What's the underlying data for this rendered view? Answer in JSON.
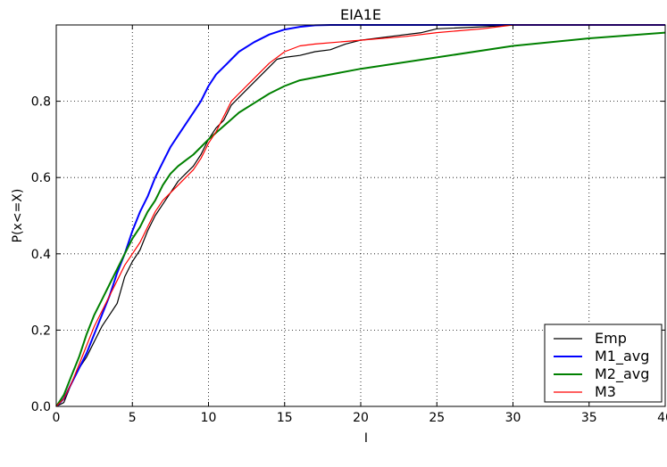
{
  "chart_data": {
    "type": "line",
    "title": "EIA1E",
    "xlabel": "I",
    "ylabel": "P(x<=X)",
    "xlim": [
      0,
      40
    ],
    "ylim": [
      0,
      1.0
    ],
    "x_ticks": [
      "0",
      "5",
      "10",
      "15",
      "20",
      "25",
      "30",
      "35",
      "40"
    ],
    "y_ticks": [
      "0.0",
      "0.2",
      "0.4",
      "0.6",
      "0.8"
    ],
    "grid": true,
    "legend_position": "bottom-right",
    "series": [
      {
        "name": "Emp",
        "color": "#000000",
        "points": [
          [
            0,
            0
          ],
          [
            0.5,
            0.01
          ],
          [
            1,
            0.06
          ],
          [
            1.5,
            0.1
          ],
          [
            2,
            0.13
          ],
          [
            2.5,
            0.17
          ],
          [
            3,
            0.21
          ],
          [
            3.5,
            0.24
          ],
          [
            4,
            0.27
          ],
          [
            4.5,
            0.34
          ],
          [
            5,
            0.38
          ],
          [
            5.5,
            0.41
          ],
          [
            6,
            0.46
          ],
          [
            6.5,
            0.5
          ],
          [
            7,
            0.53
          ],
          [
            7.5,
            0.56
          ],
          [
            8,
            0.59
          ],
          [
            8.5,
            0.61
          ],
          [
            9,
            0.63
          ],
          [
            9.5,
            0.66
          ],
          [
            10,
            0.7
          ],
          [
            10.5,
            0.73
          ],
          [
            11,
            0.75
          ],
          [
            11.5,
            0.79
          ],
          [
            12,
            0.81
          ],
          [
            13,
            0.85
          ],
          [
            14,
            0.89
          ],
          [
            14.5,
            0.91
          ],
          [
            15,
            0.915
          ],
          [
            16,
            0.92
          ],
          [
            17,
            0.93
          ],
          [
            18,
            0.935
          ],
          [
            19,
            0.95
          ],
          [
            20,
            0.96
          ],
          [
            22,
            0.97
          ],
          [
            24,
            0.98
          ],
          [
            25,
            0.99
          ],
          [
            28,
            0.995
          ],
          [
            30,
            1.0
          ],
          [
            40,
            1.0
          ]
        ]
      },
      {
        "name": "M1_avg",
        "color": "#0000ff",
        "points": [
          [
            0,
            0
          ],
          [
            0.5,
            0.02
          ],
          [
            1,
            0.06
          ],
          [
            1.5,
            0.1
          ],
          [
            2,
            0.14
          ],
          [
            2.5,
            0.19
          ],
          [
            3,
            0.24
          ],
          [
            3.5,
            0.29
          ],
          [
            4,
            0.35
          ],
          [
            4.5,
            0.4
          ],
          [
            5,
            0.46
          ],
          [
            5.5,
            0.51
          ],
          [
            6,
            0.55
          ],
          [
            6.5,
            0.6
          ],
          [
            7,
            0.64
          ],
          [
            7.5,
            0.68
          ],
          [
            8,
            0.71
          ],
          [
            8.5,
            0.74
          ],
          [
            9,
            0.77
          ],
          [
            9.5,
            0.8
          ],
          [
            10,
            0.84
          ],
          [
            10.5,
            0.87
          ],
          [
            11,
            0.89
          ],
          [
            11.5,
            0.91
          ],
          [
            12,
            0.93
          ],
          [
            13,
            0.955
          ],
          [
            14,
            0.975
          ],
          [
            15,
            0.988
          ],
          [
            16,
            0.995
          ],
          [
            17,
            0.999
          ],
          [
            18,
            1.0
          ],
          [
            40,
            1.0
          ]
        ]
      },
      {
        "name": "M2_avg",
        "color": "#008000",
        "points": [
          [
            0,
            0
          ],
          [
            0.5,
            0.03
          ],
          [
            1,
            0.08
          ],
          [
            1.5,
            0.13
          ],
          [
            2,
            0.19
          ],
          [
            2.5,
            0.24
          ],
          [
            3,
            0.28
          ],
          [
            3.5,
            0.32
          ],
          [
            4,
            0.36
          ],
          [
            4.5,
            0.4
          ],
          [
            5,
            0.44
          ],
          [
            5.5,
            0.47
          ],
          [
            6,
            0.51
          ],
          [
            6.5,
            0.54
          ],
          [
            7,
            0.58
          ],
          [
            7.5,
            0.61
          ],
          [
            8,
            0.63
          ],
          [
            8.5,
            0.645
          ],
          [
            9,
            0.66
          ],
          [
            9.5,
            0.68
          ],
          [
            10,
            0.7
          ],
          [
            11,
            0.735
          ],
          [
            12,
            0.77
          ],
          [
            13,
            0.795
          ],
          [
            14,
            0.82
          ],
          [
            15,
            0.84
          ],
          [
            16,
            0.855
          ],
          [
            18,
            0.87
          ],
          [
            20,
            0.885
          ],
          [
            25,
            0.915
          ],
          [
            30,
            0.945
          ],
          [
            35,
            0.965
          ],
          [
            40,
            0.98
          ]
        ]
      },
      {
        "name": "M3",
        "color": "#ff0000",
        "points": [
          [
            0,
            0
          ],
          [
            0.5,
            0.02
          ],
          [
            1,
            0.06
          ],
          [
            1.5,
            0.11
          ],
          [
            2,
            0.16
          ],
          [
            2.5,
            0.21
          ],
          [
            3,
            0.25
          ],
          [
            3.5,
            0.29
          ],
          [
            4,
            0.33
          ],
          [
            4.5,
            0.37
          ],
          [
            5,
            0.4
          ],
          [
            5.5,
            0.43
          ],
          [
            6,
            0.47
          ],
          [
            6.5,
            0.51
          ],
          [
            7,
            0.54
          ],
          [
            7.5,
            0.56
          ],
          [
            8,
            0.58
          ],
          [
            8.5,
            0.6
          ],
          [
            9,
            0.62
          ],
          [
            9.5,
            0.65
          ],
          [
            10,
            0.69
          ],
          [
            10.5,
            0.72
          ],
          [
            11,
            0.76
          ],
          [
            11.5,
            0.8
          ],
          [
            12,
            0.82
          ],
          [
            13,
            0.86
          ],
          [
            14,
            0.9
          ],
          [
            15,
            0.93
          ],
          [
            16,
            0.945
          ],
          [
            17,
            0.95
          ],
          [
            20,
            0.96
          ],
          [
            23,
            0.97
          ],
          [
            25,
            0.98
          ],
          [
            28,
            0.99
          ],
          [
            30,
            1.0
          ],
          [
            40,
            1.0
          ]
        ]
      }
    ]
  }
}
